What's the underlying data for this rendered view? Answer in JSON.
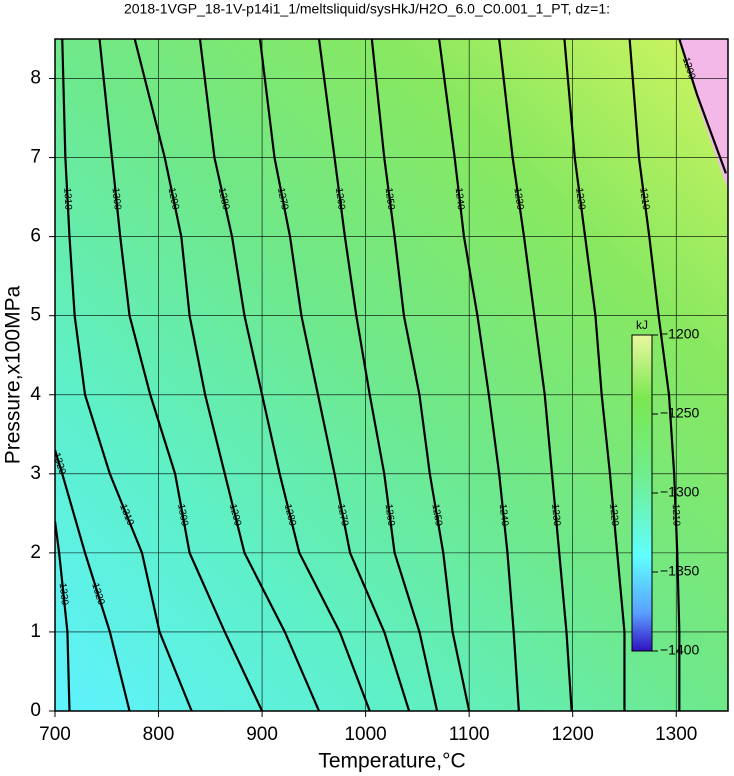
{
  "chart_data": {
    "type": "contour",
    "title": "2018-1VGP_18-1V-p14i1_1/meltsliquid/sysHkJ/H2O_6.0_C0.001_1_PT, dz=1:",
    "xlabel": "Temperature,°C",
    "ylabel": "Pressure,x100MPa",
    "xlim": [
      700,
      1350
    ],
    "ylim": [
      0,
      8.5
    ],
    "xticks": [
      700,
      800,
      900,
      1000,
      1100,
      1200,
      1300
    ],
    "yticks": [
      0,
      1,
      2,
      3,
      4,
      5,
      6,
      7,
      8
    ],
    "grid": true,
    "line_color": "#000000",
    "contours": [
      {
        "level": -1330,
        "temperature": [
          714,
          712,
          704,
          700
        ],
        "pressure": [
          0,
          1,
          2,
          2.4
        ]
      },
      {
        "level": -1320,
        "temperature": [
          772,
          753,
          729,
          707,
          700
        ],
        "pressure": [
          0,
          1,
          2,
          3,
          3.3
        ]
      },
      {
        "level": -1310,
        "temperature": [
          832,
          801,
          784,
          753,
          729,
          719,
          714,
          710,
          707
        ],
        "pressure": [
          0,
          1,
          2,
          3,
          4,
          5,
          6,
          7,
          8.5
        ]
      },
      {
        "level": -1300,
        "temperature": [
          900,
          864,
          830,
          816,
          792,
          772,
          763,
          755,
          743
        ],
        "pressure": [
          0,
          1,
          2,
          3,
          4,
          5,
          6,
          7,
          8.5
        ]
      },
      {
        "level": -1290,
        "temperature": [
          955,
          922,
          883,
          864,
          845,
          830,
          822,
          806,
          777
        ],
        "pressure": [
          0,
          1,
          2,
          3,
          4,
          5,
          6,
          7,
          8.5
        ]
      },
      {
        "level": -1280,
        "temperature": [
          1004,
          975,
          936,
          917,
          900,
          883,
          871,
          854,
          840
        ],
        "pressure": [
          0,
          1,
          2,
          3,
          4,
          5,
          6,
          7,
          8.5
        ]
      },
      {
        "level": -1270,
        "temperature": [
          1042,
          1018,
          985,
          970,
          954,
          938,
          927,
          912,
          898
        ],
        "pressure": [
          0,
          1,
          2,
          3,
          4,
          5,
          6,
          7,
          8.5
        ]
      },
      {
        "level": -1260,
        "temperature": [
          1069,
          1052,
          1028,
          1018,
          1004,
          991,
          980,
          970,
          955
        ],
        "pressure": [
          0,
          1,
          2,
          3,
          4,
          5,
          6,
          7,
          8.5
        ]
      },
      {
        "level": -1250,
        "temperature": [
          1100,
          1084,
          1075,
          1062,
          1052,
          1037,
          1028,
          1018,
          1006
        ],
        "pressure": [
          0,
          1,
          2,
          3,
          4,
          5,
          6,
          7,
          8.5
        ]
      },
      {
        "level": -1240,
        "temperature": [
          1148,
          1143,
          1137,
          1129,
          1119,
          1108,
          1095,
          1086,
          1071
        ],
        "pressure": [
          0,
          1,
          2,
          3,
          4,
          5,
          6,
          7,
          8.5
        ]
      },
      {
        "level": -1230,
        "temperature": [
          1199,
          1194,
          1187,
          1180,
          1173,
          1163,
          1153,
          1142,
          1129
        ],
        "pressure": [
          0,
          1,
          2,
          3,
          4,
          5,
          6,
          7,
          8.5
        ]
      },
      {
        "level": -1220,
        "temperature": [
          1250,
          1250,
          1243,
          1236,
          1228,
          1222,
          1212,
          1202,
          1192
        ],
        "pressure": [
          0,
          1,
          2,
          3,
          4,
          5,
          6,
          7,
          8.5
        ]
      },
      {
        "level": -1210,
        "temperature": [
          1303,
          1303,
          1301,
          1298,
          1293,
          1283,
          1274,
          1264,
          1255
        ],
        "pressure": [
          0,
          1,
          2,
          3,
          4,
          5,
          6,
          7,
          8.5
        ]
      },
      {
        "level": -1200,
        "temperature": [
          1303,
          1320,
          1348
        ],
        "pressure": [
          8.5,
          7.8,
          6.8
        ]
      }
    ],
    "colorbar": {
      "label": "kJ",
      "lim": [
        -1400,
        -1200
      ],
      "ticks": [
        {
          "value": -1200,
          "label": "−1200"
        },
        {
          "value": -1250,
          "label": "−1250"
        },
        {
          "value": -1300,
          "label": "−1300"
        },
        {
          "value": -1350,
          "label": "−1350"
        },
        {
          "value": -1400,
          "label": "−1400"
        }
      ]
    }
  }
}
